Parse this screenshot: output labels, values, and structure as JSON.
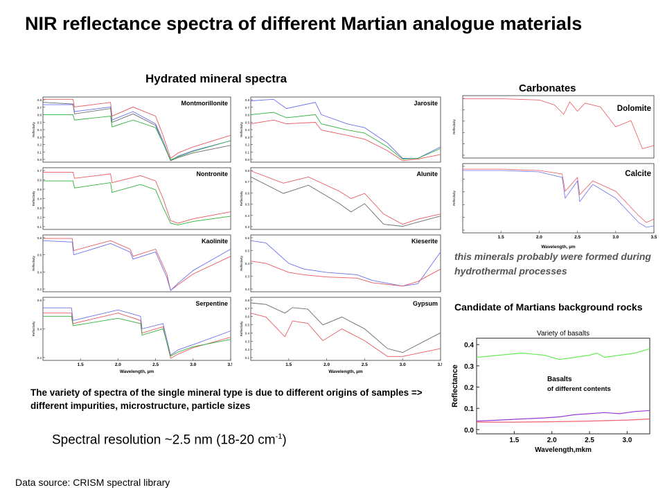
{
  "slide": {
    "title": "NIR reflectance spectra of different Martian analogue materials",
    "hydrated_heading": "Hydrated mineral spectra",
    "carbonates_heading": "Carbonates",
    "hydrothermal_note": "this minerals probably were formed during hydrothermal processes",
    "candidate_heading": "Candidate of Martians background rocks",
    "variety_note": "The variety of spectra of the single mineral type is due to different origins of samples => different impurities, microstructure, particle sizes",
    "resolution_text": "Spectral resolution ~2.5 nm (18-20 cm",
    "resolution_sup": "-1",
    "resolution_close": ")",
    "source": "Data source: CRISM spectral library"
  },
  "colors": {
    "red": "#e8585f",
    "blue": "#6b6ff0",
    "green": "#2db23a",
    "gray": "#6a6a6a",
    "basalt_green": "#66ee55",
    "purple": "#9b3ad6",
    "basalt_red": "#f06070"
  },
  "chart_data": [
    {
      "type": "line",
      "panel": "Montmorillonite",
      "xlabel": "",
      "ylabel": "Reflectivity",
      "yticks": [
        "0.8",
        "0.7",
        "0.6",
        "0.5",
        "0.4",
        "0.3",
        "0.2",
        "0.1",
        "0.0"
      ],
      "ylim": [
        0,
        0.85
      ],
      "xlim": [
        1.0,
        3.5
      ],
      "series": [
        {
          "color": "red",
          "x": [
            1.0,
            1.4,
            1.42,
            1.9,
            1.92,
            2.2,
            2.5,
            2.6,
            2.7,
            2.8,
            3.0,
            3.5
          ],
          "y": [
            0.82,
            0.82,
            0.72,
            0.78,
            0.6,
            0.72,
            0.6,
            0.35,
            0.05,
            0.12,
            0.2,
            0.35
          ]
        },
        {
          "color": "blue",
          "x": [
            1.0,
            1.4,
            1.42,
            1.9,
            1.92,
            2.2,
            2.5,
            2.6,
            2.7,
            2.8,
            3.0,
            3.5
          ],
          "y": [
            0.75,
            0.75,
            0.66,
            0.72,
            0.55,
            0.66,
            0.5,
            0.28,
            0.02,
            0.08,
            0.15,
            0.28
          ]
        },
        {
          "color": "gray",
          "x": [
            1.0,
            1.4,
            1.42,
            1.9,
            1.92,
            2.2,
            2.5,
            2.6,
            2.7,
            2.8,
            3.0,
            3.5
          ],
          "y": [
            0.78,
            0.76,
            0.63,
            0.7,
            0.52,
            0.63,
            0.48,
            0.25,
            0.02,
            0.06,
            0.12,
            0.22
          ]
        },
        {
          "color": "green",
          "x": [
            1.0,
            1.4,
            1.42,
            1.9,
            1.92,
            2.2,
            2.5,
            2.6,
            2.7,
            2.8,
            3.0,
            3.5
          ],
          "y": [
            0.62,
            0.62,
            0.55,
            0.6,
            0.46,
            0.55,
            0.45,
            0.25,
            0.03,
            0.07,
            0.14,
            0.28
          ]
        }
      ]
    },
    {
      "type": "line",
      "panel": "Nontronite",
      "xlabel": "",
      "ylabel": "Reflectivity",
      "yticks": [
        "0.7",
        "0.6",
        "0.5",
        "0.4",
        "0.3",
        "0.2",
        "0.1"
      ],
      "ylim": [
        0.05,
        0.75
      ],
      "xlim": [
        1.0,
        3.5
      ],
      "series": [
        {
          "color": "red",
          "x": [
            1.0,
            1.4,
            1.42,
            1.9,
            1.92,
            2.3,
            2.5,
            2.6,
            2.7,
            2.8,
            3.0,
            3.5
          ],
          "y": [
            0.7,
            0.7,
            0.63,
            0.68,
            0.58,
            0.66,
            0.6,
            0.4,
            0.15,
            0.12,
            0.17,
            0.25
          ]
        },
        {
          "color": "green",
          "x": [
            1.0,
            1.4,
            1.42,
            1.9,
            1.92,
            2.3,
            2.5,
            2.6,
            2.7,
            2.8,
            3.0,
            3.5
          ],
          "y": [
            0.6,
            0.6,
            0.52,
            0.58,
            0.47,
            0.56,
            0.5,
            0.3,
            0.12,
            0.1,
            0.14,
            0.2
          ]
        }
      ]
    },
    {
      "type": "line",
      "panel": "Kaolinite",
      "xlabel": "",
      "ylabel": "Reflectivity",
      "yticks": [
        "0.8",
        "0.6",
        "0.4",
        "0.2"
      ],
      "ylim": [
        0.1,
        0.9
      ],
      "xlim": [
        1.0,
        3.5
      ],
      "series": [
        {
          "color": "red",
          "x": [
            1.0,
            1.39,
            1.41,
            1.9,
            2.16,
            2.2,
            2.5,
            2.65,
            2.7,
            2.8,
            3.0,
            3.5
          ],
          "y": [
            0.85,
            0.85,
            0.68,
            0.82,
            0.7,
            0.6,
            0.7,
            0.35,
            0.12,
            0.2,
            0.35,
            0.6
          ]
        },
        {
          "color": "blue",
          "x": [
            1.0,
            1.39,
            1.41,
            1.9,
            2.16,
            2.2,
            2.5,
            2.65,
            2.7,
            2.8,
            3.0,
            3.5
          ],
          "y": [
            0.82,
            0.8,
            0.62,
            0.78,
            0.66,
            0.56,
            0.66,
            0.3,
            0.12,
            0.22,
            0.4,
            0.7
          ]
        }
      ]
    },
    {
      "type": "line",
      "panel": "Serpentine",
      "xlabel": "Wavelength, µm",
      "ylabel": "Reflectivity",
      "yticks": [
        "0.6",
        "0.4",
        "0.2"
      ],
      "ylim": [
        0.1,
        0.7
      ],
      "xlim": [
        1.0,
        3.5
      ],
      "xticks": [
        "1.5",
        "2.0",
        "2.5",
        "3.0",
        "3.5"
      ],
      "series": [
        {
          "color": "blue",
          "x": [
            1.0,
            1.38,
            1.4,
            2.0,
            2.3,
            2.32,
            2.6,
            2.7,
            2.8,
            3.0,
            3.5
          ],
          "y": [
            0.6,
            0.6,
            0.48,
            0.58,
            0.52,
            0.4,
            0.45,
            0.15,
            0.2,
            0.25,
            0.38
          ]
        },
        {
          "color": "red",
          "x": [
            1.0,
            1.38,
            1.4,
            2.0,
            2.3,
            2.32,
            2.6,
            2.7,
            2.8,
            3.0,
            3.5
          ],
          "y": [
            0.55,
            0.55,
            0.45,
            0.55,
            0.48,
            0.36,
            0.42,
            0.12,
            0.16,
            0.22,
            0.32
          ]
        },
        {
          "color": "green",
          "x": [
            1.0,
            1.38,
            1.4,
            2.0,
            2.3,
            2.32,
            2.6,
            2.7,
            2.8,
            3.0,
            3.5
          ],
          "y": [
            0.52,
            0.52,
            0.43,
            0.5,
            0.45,
            0.34,
            0.4,
            0.14,
            0.18,
            0.23,
            0.3
          ]
        }
      ]
    },
    {
      "type": "line",
      "panel": "Jarosite",
      "xlabel": "",
      "ylabel": "Reflectivity",
      "yticks": [
        "0.8",
        "0.7",
        "0.6",
        "0.5",
        "0.4",
        "0.3",
        "0.2",
        "0.1",
        "0.0"
      ],
      "ylim": [
        0,
        0.85
      ],
      "xlim": [
        1.0,
        3.5
      ],
      "series": [
        {
          "color": "blue",
          "x": [
            1.0,
            1.3,
            1.47,
            1.85,
            1.93,
            2.27,
            2.5,
            2.8,
            3.0,
            3.2,
            3.5
          ],
          "y": [
            0.8,
            0.82,
            0.7,
            0.78,
            0.62,
            0.5,
            0.45,
            0.25,
            0.05,
            0.05,
            0.2
          ]
        },
        {
          "color": "green",
          "x": [
            1.0,
            1.3,
            1.47,
            1.85,
            1.93,
            2.27,
            2.5,
            2.8,
            3.0,
            3.2,
            3.5
          ],
          "y": [
            0.62,
            0.65,
            0.58,
            0.62,
            0.5,
            0.42,
            0.38,
            0.2,
            0.04,
            0.05,
            0.18
          ]
        },
        {
          "color": "red",
          "x": [
            1.0,
            1.3,
            1.47,
            1.85,
            1.93,
            2.27,
            2.5,
            2.8,
            3.0,
            3.2,
            3.5
          ],
          "y": [
            0.5,
            0.55,
            0.5,
            0.52,
            0.42,
            0.35,
            0.3,
            0.15,
            0.02,
            0.04,
            0.1
          ]
        }
      ]
    },
    {
      "type": "line",
      "panel": "Alunite",
      "xlabel": "",
      "ylabel": "Reflectivity",
      "yticks": [
        "0.8",
        "0.7",
        "0.6",
        "0.5",
        "0.4",
        "0.3"
      ],
      "ylim": [
        0.25,
        0.85
      ],
      "xlim": [
        1.0,
        3.5
      ],
      "series": [
        {
          "color": "red",
          "x": [
            1.0,
            1.43,
            1.76,
            2.17,
            2.32,
            2.5,
            2.75,
            3.0,
            3.2,
            3.5
          ],
          "y": [
            0.82,
            0.7,
            0.76,
            0.62,
            0.55,
            0.6,
            0.4,
            0.3,
            0.35,
            0.4
          ]
        },
        {
          "color": "gray",
          "x": [
            1.0,
            1.43,
            1.76,
            2.17,
            2.32,
            2.5,
            2.75,
            3.0,
            3.2,
            3.5
          ],
          "y": [
            0.76,
            0.6,
            0.68,
            0.5,
            0.42,
            0.5,
            0.3,
            0.28,
            0.32,
            0.38
          ]
        }
      ]
    },
    {
      "type": "line",
      "panel": "Kieserite",
      "xlabel": "",
      "ylabel": "Reflectivity",
      "yticks": [
        "0.6",
        "0.5",
        "0.4",
        "0.3",
        "0.2"
      ],
      "ylim": [
        0.15,
        0.65
      ],
      "xlim": [
        1.0,
        3.5
      ],
      "series": [
        {
          "color": "blue",
          "x": [
            1.0,
            1.2,
            1.5,
            1.7,
            2.0,
            2.4,
            2.6,
            3.0,
            3.2,
            3.5
          ],
          "y": [
            0.6,
            0.58,
            0.4,
            0.35,
            0.32,
            0.3,
            0.25,
            0.2,
            0.22,
            0.5
          ]
        },
        {
          "color": "red",
          "x": [
            1.0,
            1.2,
            1.5,
            1.7,
            2.0,
            2.4,
            2.6,
            3.0,
            3.2,
            3.5
          ],
          "y": [
            0.42,
            0.4,
            0.32,
            0.3,
            0.28,
            0.27,
            0.23,
            0.2,
            0.24,
            0.35
          ]
        }
      ]
    },
    {
      "type": "line",
      "panel": "Gypsum",
      "xlabel": "Wavelength, µm",
      "ylabel": "Reflectivity",
      "yticks": [
        "0.8",
        "0.7",
        "0.6",
        "0.5",
        "0.4",
        "0.3",
        "0.2",
        "0.1"
      ],
      "ylim": [
        0.05,
        0.85
      ],
      "xlim": [
        1.0,
        3.5
      ],
      "xticks": [
        "1.5",
        "2.0",
        "2.5",
        "3.0",
        "3.5"
      ],
      "series": [
        {
          "color": "gray",
          "x": [
            1.0,
            1.2,
            1.45,
            1.55,
            1.75,
            1.95,
            2.2,
            2.5,
            2.8,
            3.0,
            3.5
          ],
          "y": [
            0.78,
            0.76,
            0.65,
            0.72,
            0.7,
            0.5,
            0.6,
            0.45,
            0.2,
            0.15,
            0.4
          ]
        },
        {
          "color": "red",
          "x": [
            1.0,
            1.2,
            1.45,
            1.55,
            1.75,
            1.95,
            2.2,
            2.5,
            2.8,
            3.0,
            3.5
          ],
          "y": [
            0.65,
            0.6,
            0.35,
            0.55,
            0.52,
            0.3,
            0.45,
            0.3,
            0.1,
            0.1,
            0.2
          ]
        }
      ]
    },
    {
      "type": "line",
      "panel": "Dolomite",
      "xlabel": "",
      "ylabel": "Reflectivity",
      "yticks": [
        "",
        "",
        "",
        "",
        "",
        ""
      ],
      "ylim": [
        0,
        1
      ],
      "xlim": [
        1.0,
        3.5
      ],
      "series": [
        {
          "color": "red",
          "x": [
            1.0,
            1.5,
            2.0,
            2.2,
            2.32,
            2.4,
            2.5,
            2.6,
            2.8,
            3.0,
            3.2,
            3.35,
            3.5
          ],
          "y": [
            0.95,
            0.95,
            0.93,
            0.85,
            0.7,
            0.9,
            0.75,
            0.88,
            0.82,
            0.5,
            0.6,
            0.15,
            0.2
          ]
        }
      ]
    },
    {
      "type": "line",
      "panel": "Calcite",
      "xlabel": "Wavelength, µm",
      "ylabel": "Reflectivity",
      "yticks": [
        "",
        "",
        "",
        "",
        "",
        ""
      ],
      "ylim": [
        0,
        1
      ],
      "xlim": [
        1.0,
        3.5
      ],
      "xticks": [
        "1.5",
        "2.0",
        "2.5",
        "3.0",
        "3.5"
      ],
      "series": [
        {
          "color": "red",
          "x": [
            1.0,
            1.5,
            2.0,
            2.3,
            2.34,
            2.5,
            2.53,
            2.7,
            3.0,
            3.3,
            3.4,
            3.5
          ],
          "y": [
            0.92,
            0.92,
            0.9,
            0.85,
            0.6,
            0.8,
            0.55,
            0.75,
            0.6,
            0.25,
            0.15,
            0.2
          ]
        },
        {
          "color": "blue",
          "x": [
            1.0,
            1.5,
            2.0,
            2.3,
            2.34,
            2.5,
            2.53,
            2.7,
            3.0,
            3.3,
            3.4,
            3.5
          ],
          "y": [
            0.9,
            0.9,
            0.88,
            0.8,
            0.5,
            0.75,
            0.45,
            0.7,
            0.5,
            0.15,
            0.08,
            0.1
          ]
        }
      ]
    },
    {
      "type": "line",
      "panel": "Basalts",
      "title": "Variety of basalts",
      "xlabel": "Wavelength,mkm",
      "ylabel": "Reflectance",
      "annotation": [
        "Basalts",
        "of different contents"
      ],
      "xlim": [
        1.0,
        3.3
      ],
      "ylim": [
        -0.02,
        0.43
      ],
      "xticks": [
        "1.5",
        "2.0",
        "2.5",
        "3.0"
      ],
      "yticks": [
        "0.4",
        "0.3",
        "0.2",
        "0.1",
        "0.0"
      ],
      "series": [
        {
          "color": "basalt_green",
          "x": [
            1.0,
            1.3,
            1.6,
            1.9,
            2.1,
            2.3,
            2.5,
            2.6,
            2.7,
            2.9,
            3.1,
            3.3
          ],
          "y": [
            0.34,
            0.35,
            0.36,
            0.35,
            0.33,
            0.34,
            0.35,
            0.36,
            0.34,
            0.35,
            0.36,
            0.38
          ]
        },
        {
          "color": "purple",
          "x": [
            1.0,
            1.3,
            1.6,
            1.9,
            2.1,
            2.3,
            2.5,
            2.7,
            2.9,
            3.1,
            3.3
          ],
          "y": [
            0.04,
            0.045,
            0.05,
            0.055,
            0.06,
            0.07,
            0.075,
            0.08,
            0.075,
            0.085,
            0.09
          ]
        },
        {
          "color": "basalt_red",
          "x": [
            1.0,
            1.5,
            2.0,
            2.5,
            3.0,
            3.3
          ],
          "y": [
            0.035,
            0.035,
            0.037,
            0.04,
            0.045,
            0.05
          ]
        }
      ]
    }
  ]
}
